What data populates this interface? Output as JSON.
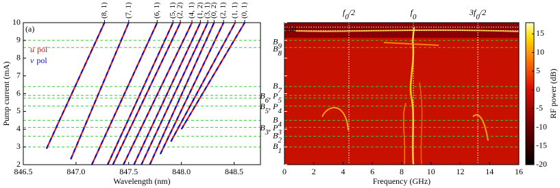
{
  "chart_data": [
    {
      "type": "line",
      "panel": "(a)",
      "x_label": "Wavelength (nm)",
      "y_label": "Pump current (mA)",
      "xlim": [
        846.5,
        848.75
      ],
      "ylim": [
        2,
        10
      ],
      "xticks": [
        {
          "value": 846.5,
          "label": "846.5"
        },
        {
          "value": 847,
          "label": "847.0"
        },
        {
          "value": 847.5,
          "label": "847.5"
        },
        {
          "value": 848,
          "label": "848.0"
        },
        {
          "value": 848.5,
          "label": "848.5"
        }
      ],
      "yticks": [
        2,
        3,
        4,
        5,
        6,
        7,
        8,
        9,
        10
      ],
      "series": [
        {
          "symbol": "u",
          "label": "pol",
          "color": "#e01010"
        },
        {
          "symbol": "v",
          "label": "pol",
          "color": "#1010d0"
        }
      ],
      "modes": [
        {
          "label": "(8, 1)",
          "x": [
            846.72,
            847.27
          ],
          "y": [
            2.9,
            10
          ]
        },
        {
          "label": "(7, 1)",
          "x": [
            846.95,
            847.5
          ],
          "y": [
            2.3,
            10
          ]
        },
        {
          "label": "(6, 1)",
          "x": [
            847.15,
            847.77
          ],
          "y": [
            2,
            10
          ]
        },
        {
          "label": "(5, 1)",
          "x": [
            847.3,
            847.92
          ],
          "y": [
            2,
            10
          ]
        },
        {
          "label": "(2, 2)",
          "x": [
            847.35,
            847.99
          ],
          "y": [
            2,
            10
          ]
        },
        {
          "label": "(4, 1)",
          "x": [
            847.45,
            848.1
          ],
          "y": [
            2,
            10
          ]
        },
        {
          "label": "(1, 2)",
          "x": [
            847.55,
            848.18
          ],
          "y": [
            2,
            10
          ]
        },
        {
          "label": "(3, 1)",
          "x": [
            847.62,
            848.25
          ],
          "y": [
            2,
            10
          ]
        },
        {
          "label": "(0, 2)",
          "x": [
            847.7,
            848.31
          ],
          "y": [
            2,
            10
          ]
        },
        {
          "label": "(2, 1)",
          "x": [
            847.8,
            848.4
          ],
          "y": [
            2.6,
            10
          ]
        },
        {
          "label": "(1, 1)",
          "x": [
            847.9,
            848.51
          ],
          "y": [
            3.3,
            10
          ]
        },
        {
          "label": "(0, 1)",
          "x": [
            848.0,
            848.6
          ],
          "y": [
            4.0,
            10
          ]
        }
      ],
      "hlines": [
        3.0,
        3.6,
        4.1,
        4.5,
        5.3,
        5.75,
        5.9,
        6.4,
        8.6,
        9.0
      ]
    },
    {
      "type": "heatmap",
      "panel": "(b)",
      "x_label": "Frequency (GHz)",
      "colorbar_label": "RF power (dB)",
      "xlim": [
        0,
        16
      ],
      "ylim": [
        2,
        10
      ],
      "xticks": [
        0,
        2,
        4,
        6,
        8,
        10,
        12,
        14,
        16
      ],
      "clim": [
        -20,
        18
      ],
      "cticks": [
        -20,
        -15,
        -10,
        -5,
        0,
        5,
        10,
        15
      ],
      "markers": [
        {
          "parts": [
            "f",
            "0",
            "/2"
          ],
          "value": 4.4
        },
        {
          "parts": [
            "f",
            "0",
            ""
          ],
          "value": 8.8
        },
        {
          "parts": [
            "3f",
            "0",
            "/2"
          ],
          "value": 13.2
        }
      ],
      "white_lines": [
        9.55,
        9.75
      ],
      "hlines": [
        3.0,
        3.6,
        4.1,
        4.5,
        5.3,
        5.75,
        5.9,
        6.4,
        8.6,
        9.0
      ],
      "levels": [
        {
          "parts": [
            "B",
            "9"
          ],
          "y": 8.9
        },
        {
          "parts": [
            "B",
            "8"
          ],
          "y": 8.5
        },
        {
          "parts": [
            "B",
            "7"
          ],
          "y": 6.4
        },
        {
          "parts": [
            "B",
            "6",
            ", P",
            "5"
          ],
          "y": 5.85
        },
        {
          "parts": [
            "B",
            "5",
            ", P",
            "4"
          ],
          "y": 5.25
        },
        {
          "parts": [
            "B",
            "4"
          ],
          "y": 4.5
        },
        {
          "parts": [
            "B",
            "3",
            ", P",
            "3"
          ],
          "y": 4.05
        },
        {
          "parts": [
            "B",
            "2"
          ],
          "y": 3.6
        },
        {
          "parts": [
            "B",
            "1"
          ],
          "y": 3.0
        }
      ]
    }
  ]
}
